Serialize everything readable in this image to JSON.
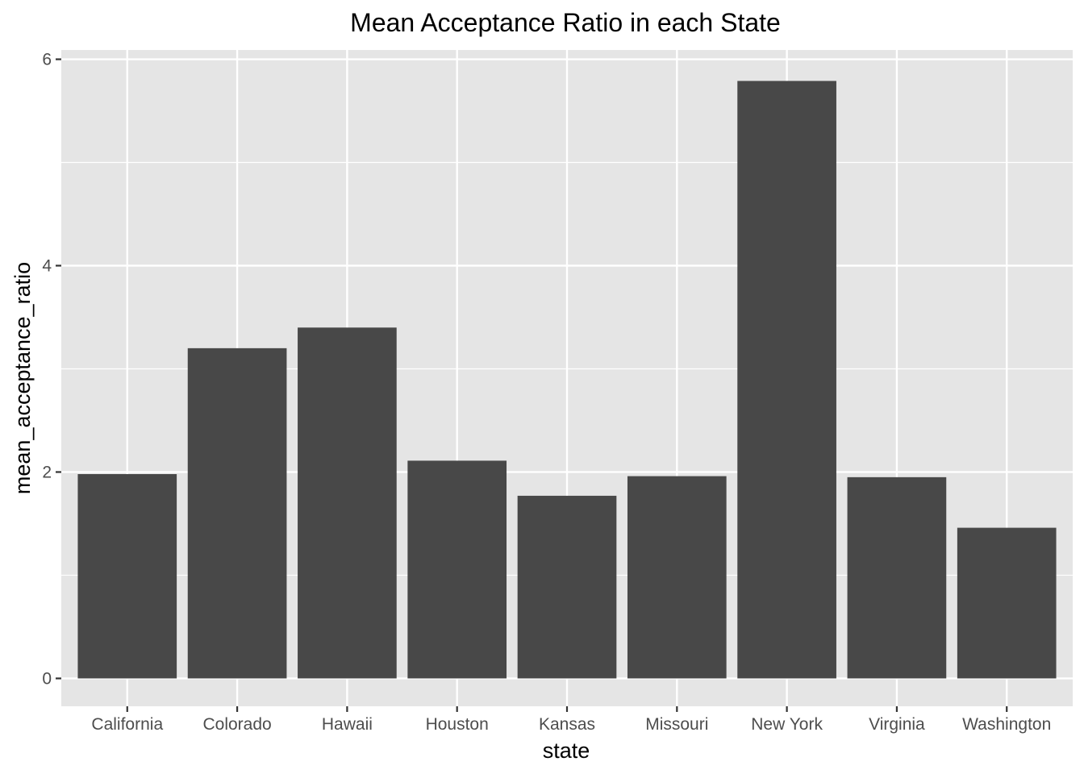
{
  "chart_data": {
    "type": "bar",
    "title": "Mean Acceptance Ratio in each State",
    "xlabel": "state",
    "ylabel": "mean_acceptance_ratio",
    "categories": [
      "California",
      "Colorado",
      "Hawaii",
      "Houston",
      "Kansas",
      "Missouri",
      "New York",
      "Virginia",
      "Washington"
    ],
    "values": [
      1.98,
      3.2,
      3.4,
      2.11,
      1.77,
      1.96,
      5.79,
      1.95,
      1.46
    ],
    "y_ticks": [
      0,
      2,
      4,
      6
    ],
    "y_tick_labels": [
      "0",
      "2",
      "4",
      "6"
    ],
    "ylim": [
      -0.27,
      6.09
    ],
    "grid": true,
    "legend": "none",
    "colors": {
      "panel_background": "#e5e5e5",
      "grid": "#ffffff",
      "bar_fill": "#484848",
      "tick_text": "#4d4d4d",
      "tick_mark": "#333333"
    }
  }
}
